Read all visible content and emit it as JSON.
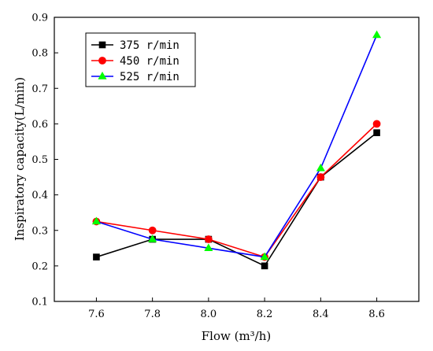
{
  "chart_data": {
    "type": "line",
    "xlabel": "Flow (m³/h)",
    "ylabel": "Inspiratory capacity(L/min)",
    "x": [
      7.6,
      7.8,
      8.0,
      8.2,
      8.4,
      8.6
    ],
    "xticks": [
      "7.6",
      "7.8",
      "8.0",
      "8.2",
      "8.4",
      "8.6"
    ],
    "yticks": [
      "0.1",
      "0.2",
      "0.3",
      "0.4",
      "0.5",
      "0.6",
      "0.7",
      "0.8",
      "0.9"
    ],
    "xlim": [
      7.45,
      8.75
    ],
    "ylim": [
      0.1,
      0.9
    ],
    "grid": false,
    "legend_position": "top-left",
    "series": [
      {
        "name": "375 r/min",
        "color": "#000000",
        "marker": "square",
        "values": [
          0.225,
          0.275,
          0.275,
          0.2,
          0.45,
          0.575
        ]
      },
      {
        "name": "450 r/min",
        "color": "#ff0000",
        "marker": "circle",
        "values": [
          0.325,
          0.3,
          0.275,
          0.225,
          0.45,
          0.6
        ]
      },
      {
        "name": "525 r/min",
        "color": "#0000ff",
        "marker_color": "#00ff00",
        "marker": "triangle",
        "values": [
          0.325,
          0.275,
          0.25,
          0.225,
          0.475,
          0.85
        ]
      }
    ]
  }
}
